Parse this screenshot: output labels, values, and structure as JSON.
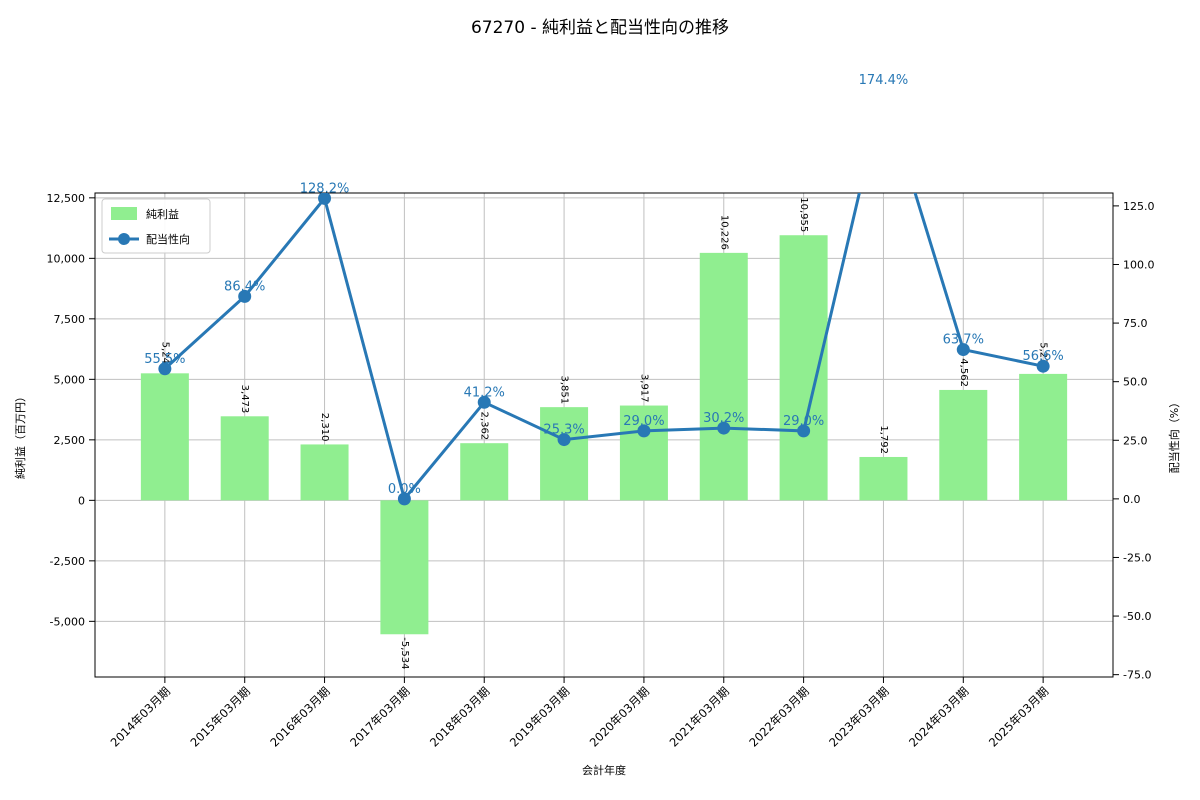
{
  "chart_data": {
    "type": "bar+line",
    "title": "67270 - 純利益と配当性向の推移",
    "categories": [
      "2014年03月期",
      "2015年03月期",
      "2016年03月期",
      "2017年03月期",
      "2018年03月期",
      "2019年03月期",
      "2020年03月期",
      "2021年03月期",
      "2022年03月期",
      "2023年03月期",
      "2024年03月期",
      "2025年03月期"
    ],
    "series": [
      {
        "name": "純利益",
        "type": "bar",
        "axis": "left",
        "color": "#90ee90",
        "values": [
          5249,
          3473,
          2310,
          -5534,
          2362,
          3851,
          3917,
          10226,
          10955,
          1792,
          4562,
          5225
        ]
      },
      {
        "name": "配当性向",
        "type": "line",
        "axis": "right",
        "color": "#2878b5",
        "values": [
          55.5,
          86.4,
          128.2,
          0.0,
          41.2,
          25.3,
          29.0,
          30.2,
          29.0,
          174.4,
          63.7,
          56.6
        ]
      }
    ],
    "xlabel": "会計年度",
    "ylabel_left": "純利益（百万円）",
    "ylabel_right": "配当性向（%）",
    "ylim_left": [
      -7300,
      12700
    ],
    "yticks_left": [
      -5000,
      -2500,
      0,
      2500,
      5000,
      7500,
      10000,
      12500
    ],
    "ylim_right": [
      -76,
      130.5
    ],
    "yticks_right": [
      -75,
      -50,
      -25,
      0,
      25,
      50,
      75,
      100,
      125
    ],
    "grid": true,
    "legend": {
      "position": "top-left",
      "entries": [
        "純利益",
        "配当性向"
      ]
    },
    "offscale_annotation": "174.4%"
  },
  "style": {
    "grid_color": "#c0c0c0",
    "spine_color": "#000000",
    "text_color": "#000000",
    "bar_color": "#90ee90",
    "line_color": "#2878b5",
    "background": "#ffffff"
  }
}
